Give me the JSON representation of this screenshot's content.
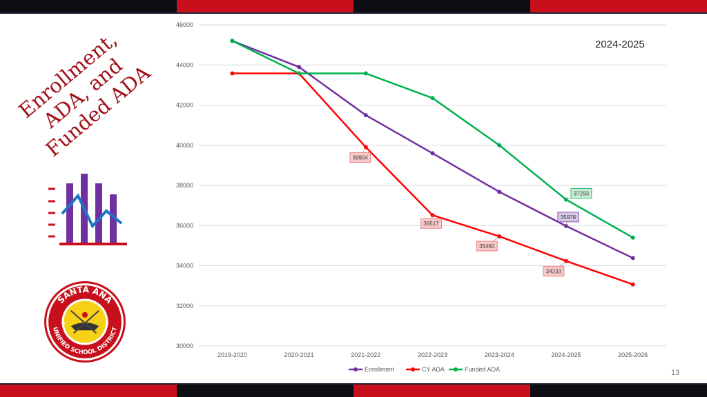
{
  "slide": {
    "title_lines": [
      "Enrollment,",
      "ADA, and",
      "Funded ADA"
    ],
    "year": "2024-2025",
    "page_number": "13",
    "logo": {
      "top_text": "SANTA ANA",
      "bottom_text": "UNIFIED SCHOOL DISTRICT"
    },
    "icon": "bar-line-chart-icon"
  },
  "colors": {
    "brand_red": "#c8101c",
    "band_dark": "#0d0d14",
    "enrollment": "#7030a0",
    "cy_ada": "#ff0000",
    "funded_ada": "#00b050"
  },
  "chart_data": {
    "type": "line",
    "categories": [
      "2019-2020",
      "2020-2021",
      "2021-2022",
      "2022-2023",
      "2023-2024",
      "2024-2025",
      "2025-2026"
    ],
    "ylim": [
      30000,
      46000
    ],
    "yticks": [
      30000,
      32000,
      34000,
      36000,
      38000,
      40000,
      42000,
      44000,
      46000
    ],
    "grid": true,
    "legend": "bottom",
    "series": [
      {
        "name": "Enrollment",
        "color": "#7030a0",
        "values": [
          45200,
          43900,
          41500,
          39600,
          37680,
          35978,
          34380
        ]
      },
      {
        "name": "CY ADA",
        "color": "#ff0000",
        "values": [
          43580,
          43580,
          39904,
          36517,
          35460,
          34233,
          33070
        ]
      },
      {
        "name": "Funded ADA",
        "color": "#00b050",
        "values": [
          45200,
          43580,
          43580,
          42350,
          40000,
          37293,
          35400
        ]
      }
    ],
    "annotations": [
      {
        "series": 1,
        "index": 2,
        "text": "39904"
      },
      {
        "series": 1,
        "index": 3,
        "text": "36517"
      },
      {
        "series": 1,
        "index": 4,
        "text": "35460"
      },
      {
        "series": 1,
        "index": 5,
        "text": "34233"
      },
      {
        "series": 0,
        "index": 5,
        "text": "35978"
      },
      {
        "series": 2,
        "index": 5,
        "text": "37293"
      }
    ]
  }
}
